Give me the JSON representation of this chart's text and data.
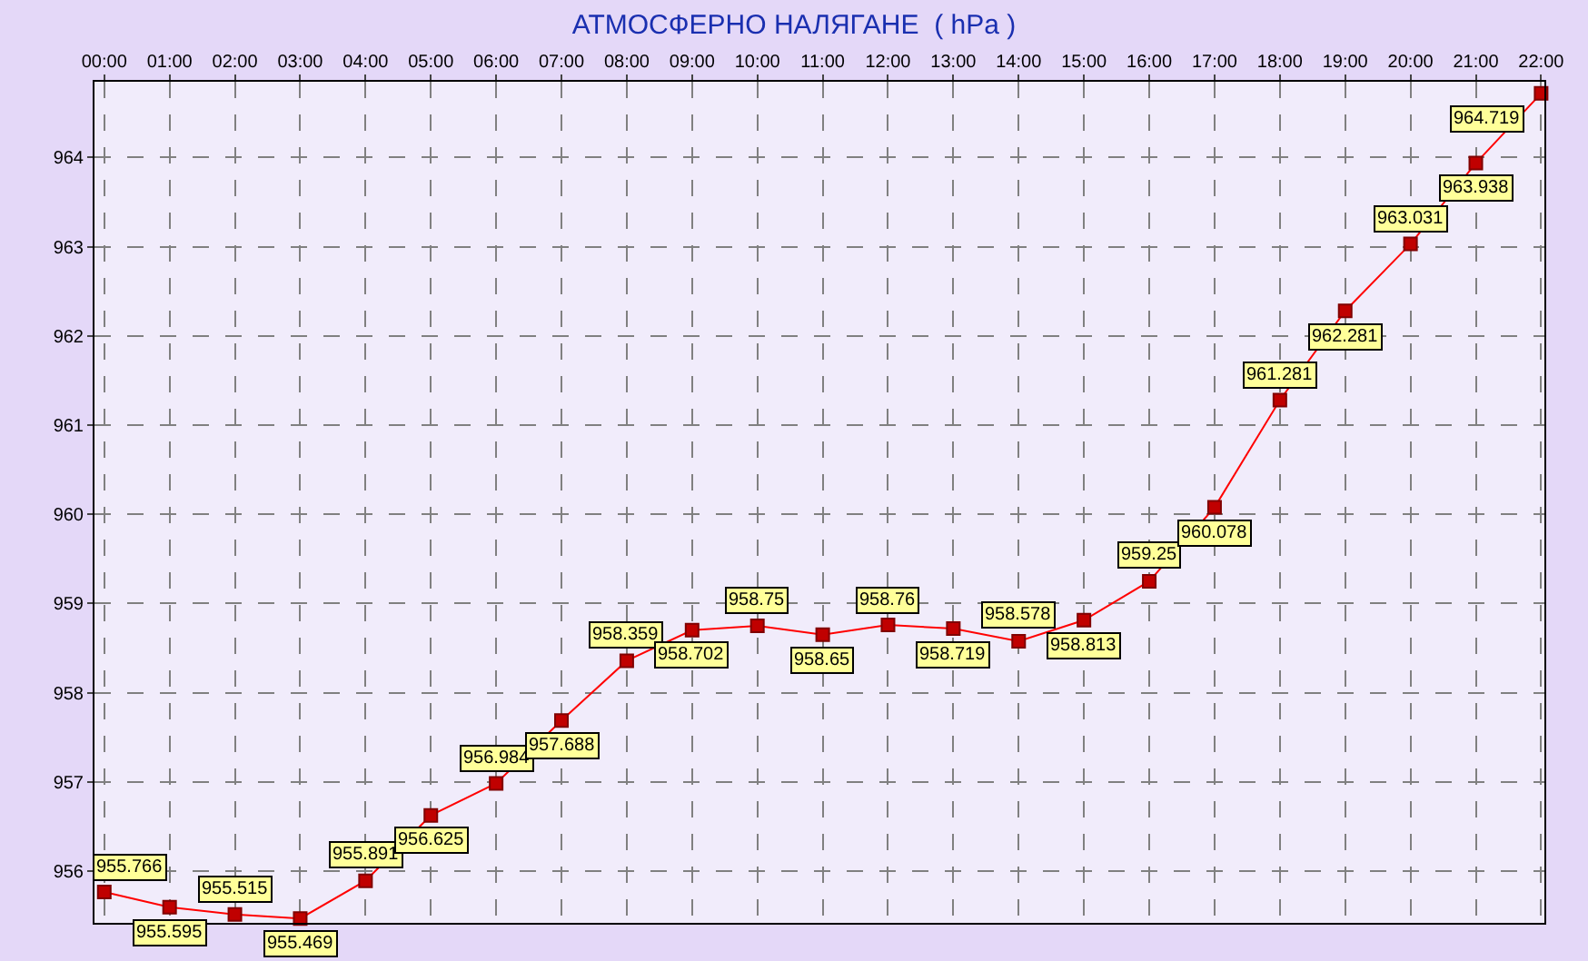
{
  "chart_data": {
    "type": "line",
    "title": "АТМОСФЕРНО НАЛЯГАНЕ  ( hPa )",
    "categories": [
      "00:00",
      "01:00",
      "02:00",
      "03:00",
      "04:00",
      "05:00",
      "06:00",
      "07:00",
      "08:00",
      "09:00",
      "10:00",
      "11:00",
      "12:00",
      "13:00",
      "14:00",
      "15:00",
      "16:00",
      "17:00",
      "18:00",
      "19:00",
      "20:00",
      "21:00",
      "22:00"
    ],
    "series": [
      {
        "color": "#ff0000",
        "values": [
          955.766,
          955.595,
          955.515,
          955.469,
          955.891,
          956.625,
          956.984,
          957.688,
          958.359,
          958.702,
          958.75,
          958.65,
          958.76,
          958.719,
          958.578,
          958.813,
          959.25,
          960.078,
          961.281,
          962.281,
          963.031,
          963.938,
          964.719
        ]
      }
    ],
    "ylim": [
      955.42,
      964.85
    ],
    "yticks": [
      956,
      957,
      958,
      959,
      960,
      961,
      962,
      963,
      964
    ],
    "grid": true,
    "marker": "square",
    "line_style": "solid",
    "data_labels": true
  }
}
